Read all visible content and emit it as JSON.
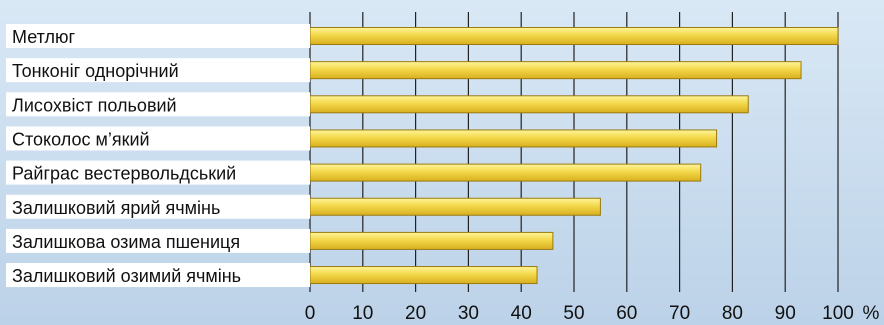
{
  "chart_data": {
    "type": "bar",
    "orientation": "horizontal",
    "categories": [
      "Метлюг",
      "Тонконіг однорічний",
      "Лисохвіст польовий",
      "Стоколос м’який",
      "Райграс вестервольдський",
      "Залишковий ярий ячмінь",
      "Залишкова озима пшениця",
      "Залишковий озимий ячмінь"
    ],
    "values": [
      100,
      93,
      83,
      77,
      74,
      55,
      46,
      43
    ],
    "x_ticks": [
      0,
      10,
      20,
      30,
      40,
      50,
      60,
      70,
      80,
      90,
      100
    ],
    "x_unit": "%",
    "xlim": [
      0,
      100
    ],
    "grid": "vertical",
    "colors": {
      "bar_fill_light": "#fff59a",
      "bar_fill": "#f3d84a",
      "bar_fill_dark": "#d8b020",
      "bar_stroke": "#9a7a10",
      "label_bg": "#ffffff",
      "text": "#111111",
      "grid": "#222222"
    }
  }
}
